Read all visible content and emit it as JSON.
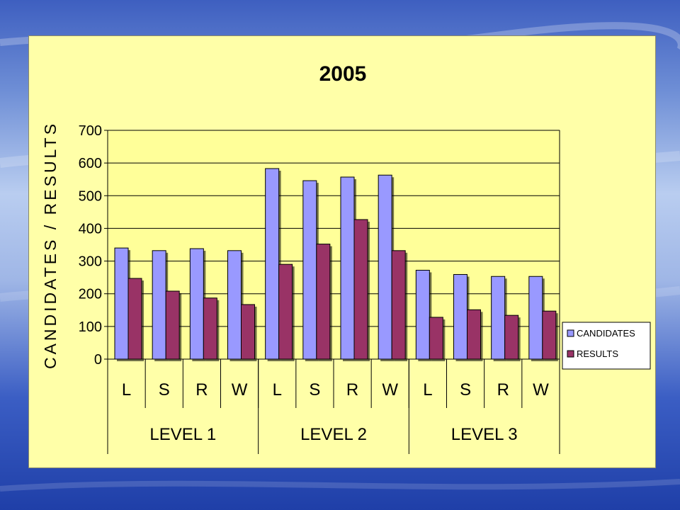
{
  "colors": {
    "plot_background": "#ffff99",
    "frame_background": "#ffffa8",
    "candidates": "#9999ff",
    "results": "#993366"
  },
  "chart_data": {
    "type": "bar",
    "title": "2005",
    "ylabel": "CANDIDATES / RESULTS",
    "xlabel": "",
    "ylim": [
      0,
      700
    ],
    "yticks": [
      0,
      100,
      200,
      300,
      400,
      500,
      600,
      700
    ],
    "grid": true,
    "legend_position": "right",
    "categories": [
      "L",
      "S",
      "R",
      "W",
      "L",
      "S",
      "R",
      "W",
      "L",
      "S",
      "R",
      "W"
    ],
    "groups": [
      {
        "label": "LEVEL 1",
        "span": 4
      },
      {
        "label": "LEVEL 2",
        "span": 4
      },
      {
        "label": "LEVEL 3",
        "span": 4
      }
    ],
    "series": [
      {
        "name": "CANDIDATES",
        "color": "#9999ff",
        "values": [
          340,
          332,
          338,
          332,
          583,
          546,
          557,
          563,
          272,
          259,
          253,
          253
        ]
      },
      {
        "name": "RESULTS",
        "color": "#993366",
        "values": [
          247,
          208,
          187,
          167,
          290,
          352,
          427,
          332,
          128,
          151,
          134,
          147
        ]
      }
    ]
  }
}
